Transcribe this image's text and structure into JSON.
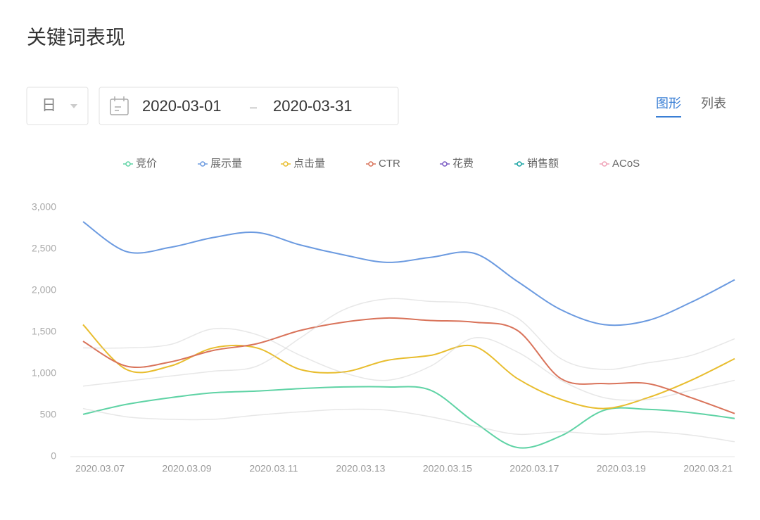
{
  "header": {
    "title": "关键词表现"
  },
  "controls": {
    "period": "日",
    "date_start": "2020-03-01",
    "date_sep": "–",
    "date_end": "2020-03-31",
    "tabs": [
      "图形",
      "列表"
    ]
  },
  "chart_data": {
    "type": "line",
    "categories": [
      "2020.03.07",
      null,
      "2020.03.09",
      null,
      "2020.03.11",
      null,
      "2020.03.13",
      null,
      "2020.03.15",
      null,
      "2020.03.17",
      null,
      "2020.03.19",
      null,
      "2020.03.21",
      null
    ],
    "ylim": [
      0,
      3000
    ],
    "yticks": [
      0,
      500,
      {
        "value": 1000,
        "label": "1,000"
      },
      {
        "value": 1500,
        "label": "1,500"
      },
      {
        "value": 2000,
        "label": "2,000"
      },
      {
        "value": 2500,
        "label": "2,500"
      },
      {
        "value": 3000,
        "label": "3,000"
      }
    ],
    "series": [
      {
        "name": "竞价",
        "color": "#5fd3a5",
        "values": [
          510,
          630,
          710,
          770,
          790,
          820,
          840,
          840,
          800,
          420,
          110,
          250,
          560,
          570,
          530,
          460
        ]
      },
      {
        "name": "展示量",
        "color": "#6b9ae0",
        "values": [
          2830,
          2470,
          2520,
          2640,
          2700,
          2550,
          2430,
          2340,
          2400,
          2450,
          2110,
          1770,
          1590,
          1640,
          1860,
          2130
        ]
      },
      {
        "name": "点击量",
        "color": "#e8bd2e",
        "values": [
          1590,
          1050,
          1090,
          1310,
          1310,
          1050,
          1020,
          1160,
          1220,
          1330,
          940,
          690,
          580,
          710,
          920,
          1180
        ]
      },
      {
        "name": "CTR",
        "color": "#d9735a",
        "values": [
          1390,
          1090,
          1140,
          1280,
          1360,
          1520,
          1620,
          1670,
          1640,
          1620,
          1520,
          940,
          880,
          880,
          710,
          520
        ]
      },
      {
        "name": "花费",
        "color": "#7b5cc4",
        "faded": true,
        "values": [
          850,
          910,
          970,
          1030,
          1090,
          1430,
          1770,
          1900,
          1870,
          1840,
          1670,
          1180,
          1050,
          1130,
          1220,
          1420
        ]
      },
      {
        "name": "销售额",
        "color": "#17a2a2",
        "faded": true,
        "values": [
          1310,
          1310,
          1350,
          1540,
          1470,
          1220,
          1010,
          920,
          1090,
          1430,
          1260,
          920,
          710,
          690,
          800,
          920
        ]
      },
      {
        "name": "ACoS",
        "color": "#f0a3b8",
        "faded": true,
        "values": [
          580,
          480,
          450,
          450,
          500,
          540,
          570,
          560,
          480,
          370,
          270,
          300,
          270,
          300,
          260,
          180
        ]
      }
    ]
  }
}
